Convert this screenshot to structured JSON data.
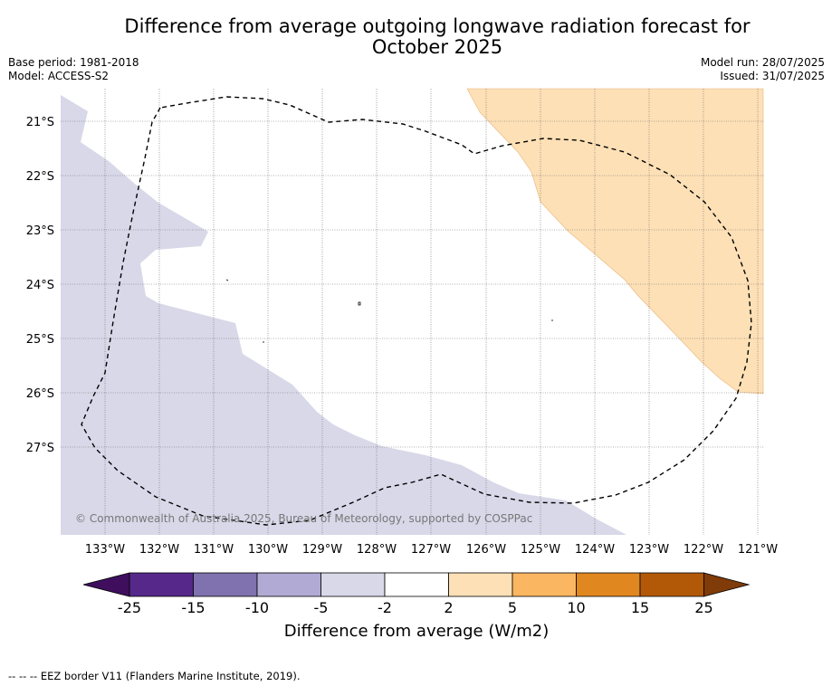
{
  "header": {
    "title_line1": "Difference from average outgoing longwave radiation forecast for",
    "title_line2": "October 2025",
    "base_period": "Base period: 1981-2018",
    "model": "Model: ACCESS-S2",
    "model_run": "Model run: 28/07/2025",
    "issued": "Issued: 31/07/2025"
  },
  "map": {
    "lat_labels": [
      "21°S",
      "22°S",
      "23°S",
      "24°S",
      "25°S",
      "26°S",
      "27°S"
    ],
    "lon_labels": [
      "133°W",
      "132°W",
      "131°W",
      "130°W",
      "129°W",
      "128°W",
      "127°W",
      "126°W",
      "125°W",
      "124°W",
      "123°W",
      "122°W",
      "121°W"
    ],
    "copyright": "© Commonwealth of Australia 2025, Bureau of Meteorology, supported by COSPPac",
    "colors": {
      "negative_light": "#d8d8e9",
      "positive_light": "#fde0b6"
    }
  },
  "colorbar": {
    "title": "Difference from average (W/m2)",
    "tick_labels": [
      "-25",
      "-15",
      "-10",
      "-5",
      "-2",
      "2",
      "5",
      "10",
      "15",
      "25"
    ],
    "colors": [
      "#3f0f5e",
      "#55288a",
      "#7f72ae",
      "#b1aad4",
      "#d8d8e9",
      "#ffffff",
      "#fde0b6",
      "#fab661",
      "#e08720",
      "#b25907",
      "#7f3b08"
    ]
  },
  "footer": {
    "legend": "--  --  -- EEZ border V11 (Flanders Marine Institute, 2019)."
  }
}
